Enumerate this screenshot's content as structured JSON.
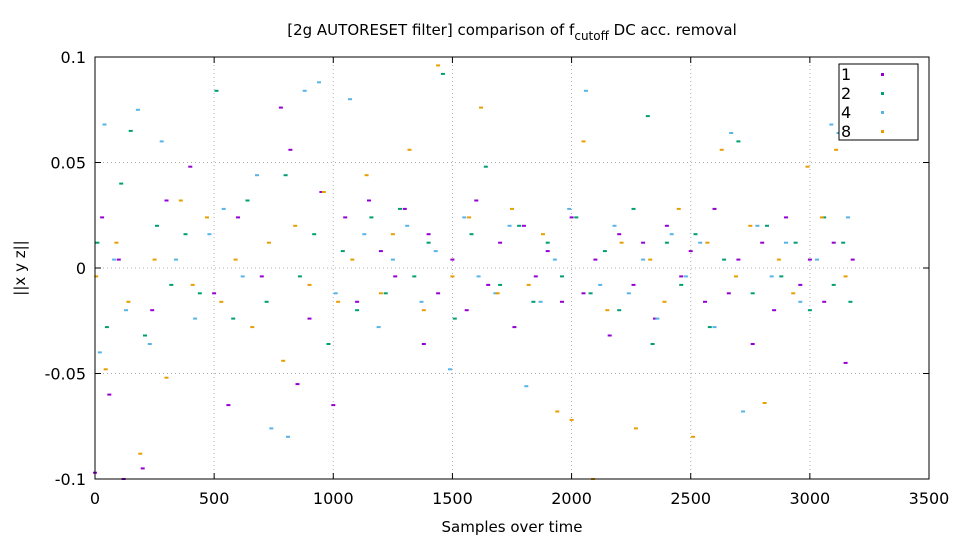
{
  "chart_data": {
    "type": "scatter",
    "title": {
      "prefix": "[2g AUTORESET filter] comparison of f",
      "subscript": "cutoff",
      "suffix": " DC acc. removal"
    },
    "xlabel": "Samples over time",
    "ylabel": "||x y z||",
    "xlim": [
      0,
      3500
    ],
    "ylim": [
      -0.1,
      0.1
    ],
    "x_ticks": [
      {
        "value": 0,
        "label": "0"
      },
      {
        "value": 500,
        "label": "500"
      },
      {
        "value": 1000,
        "label": "1000"
      },
      {
        "value": 1500,
        "label": "1500"
      },
      {
        "value": 2000,
        "label": "2000"
      },
      {
        "value": 2500,
        "label": "2500"
      },
      {
        "value": 3000,
        "label": "3000"
      },
      {
        "value": 3500,
        "label": "3500"
      }
    ],
    "y_ticks": [
      {
        "value": -0.1,
        "label": "-0.1"
      },
      {
        "value": -0.05,
        "label": "-0.05"
      },
      {
        "value": 0,
        "label": "0"
      },
      {
        "value": 0.05,
        "label": "0.05"
      },
      {
        "value": 0.1,
        "label": "0.1"
      }
    ],
    "grid": true,
    "legend_position": "top-right",
    "series": [
      {
        "name": "1",
        "color": "#9400d3",
        "marker": "dot",
        "x": [
          0,
          30,
          60,
          100,
          120,
          200,
          240,
          300,
          400,
          500,
          560,
          600,
          700,
          780,
          820,
          850,
          900,
          950,
          1000,
          1050,
          1100,
          1150,
          1200,
          1260,
          1300,
          1380,
          1400,
          1440,
          1500,
          1560,
          1600,
          1650,
          1700,
          1760,
          1800,
          1850,
          1900,
          1960,
          2000,
          2050,
          2100,
          2160,
          2200,
          2260,
          2300,
          2350,
          2400,
          2460,
          2500,
          2560,
          2600,
          2660,
          2700,
          2760,
          2800,
          2850,
          2900,
          2960,
          3000,
          3060,
          3100,
          3150,
          3180
        ],
        "y": [
          -0.097,
          0.024,
          -0.06,
          0.004,
          -0.1,
          -0.095,
          -0.02,
          0.032,
          0.048,
          -0.012,
          -0.065,
          0.024,
          -0.004,
          0.076,
          0.056,
          -0.055,
          -0.024,
          0.036,
          -0.065,
          0.024,
          -0.016,
          0.032,
          0.008,
          -0.004,
          0.028,
          -0.036,
          0.016,
          -0.012,
          0.004,
          -0.02,
          0.032,
          -0.008,
          0.012,
          -0.028,
          0.02,
          -0.004,
          0.008,
          -0.016,
          0.024,
          -0.012,
          0.004,
          -0.032,
          0.016,
          -0.008,
          0.012,
          -0.024,
          0.02,
          -0.004,
          0.008,
          -0.016,
          0.028,
          -0.012,
          0.004,
          -0.036,
          0.012,
          -0.02,
          0.024,
          -0.008,
          0.004,
          -0.016,
          0.012,
          -0.045,
          0.004
        ]
      },
      {
        "name": "2",
        "color": "#009e73",
        "marker": "dot",
        "x": [
          10,
          50,
          110,
          150,
          210,
          260,
          320,
          380,
          440,
          510,
          580,
          640,
          720,
          800,
          860,
          920,
          980,
          1040,
          1100,
          1160,
          1220,
          1280,
          1340,
          1400,
          1460,
          1510,
          1580,
          1640,
          1700,
          1780,
          1840,
          1900,
          1960,
          2020,
          2080,
          2140,
          2200,
          2260,
          2320,
          2340,
          2400,
          2460,
          2520,
          2580,
          2640,
          2700,
          2760,
          2820,
          2880,
          2940,
          3000,
          3060,
          3100,
          3140,
          3170
        ],
        "y": [
          0.012,
          -0.028,
          0.04,
          0.065,
          -0.032,
          0.02,
          -0.008,
          0.016,
          -0.012,
          0.084,
          -0.024,
          0.032,
          -0.016,
          0.044,
          -0.004,
          0.016,
          -0.036,
          0.008,
          -0.02,
          0.024,
          -0.012,
          0.028,
          -0.004,
          0.012,
          0.092,
          -0.024,
          0.016,
          0.048,
          -0.008,
          0.02,
          -0.016,
          0.012,
          -0.004,
          0.024,
          -0.012,
          0.008,
          -0.02,
          0.028,
          0.072,
          -0.036,
          0.012,
          -0.008,
          0.016,
          -0.028,
          0.004,
          0.06,
          -0.012,
          0.02,
          -0.004,
          0.012,
          -0.02,
          0.024,
          -0.008,
          0.012,
          -0.016
        ]
      },
      {
        "name": "4",
        "color": "#56b4e9",
        "marker": "dot",
        "x": [
          20,
          40,
          80,
          130,
          180,
          230,
          280,
          340,
          420,
          480,
          540,
          620,
          680,
          740,
          810,
          880,
          940,
          1010,
          1070,
          1130,
          1190,
          1250,
          1310,
          1370,
          1430,
          1490,
          1550,
          1610,
          1680,
          1740,
          1810,
          1870,
          1930,
          1990,
          2060,
          2120,
          2180,
          2240,
          2300,
          2360,
          2420,
          2480,
          2540,
          2600,
          2670,
          2720,
          2780,
          2840,
          2900,
          2960,
          3030,
          3090,
          3120,
          3160
        ],
        "y": [
          -0.04,
          0.068,
          0.004,
          -0.02,
          0.075,
          -0.036,
          0.06,
          0.004,
          -0.024,
          0.016,
          0.028,
          -0.004,
          0.044,
          -0.076,
          -0.08,
          0.084,
          0.088,
          -0.012,
          0.08,
          0.016,
          -0.028,
          0.004,
          0.02,
          -0.016,
          0.008,
          -0.048,
          0.024,
          -0.004,
          -0.012,
          0.02,
          -0.056,
          -0.016,
          0.004,
          0.028,
          0.084,
          -0.008,
          0.02,
          -0.012,
          0.004,
          -0.024,
          0.016,
          -0.004,
          0.012,
          -0.028,
          0.064,
          -0.068,
          0.02,
          -0.004,
          0.012,
          -0.016,
          0.004,
          0.068,
          0.064,
          0.024
        ]
      },
      {
        "name": "8",
        "color": "#e69f00",
        "marker": "dot",
        "x": [
          5,
          45,
          90,
          140,
          190,
          250,
          300,
          360,
          410,
          470,
          530,
          590,
          660,
          730,
          790,
          840,
          900,
          960,
          1020,
          1080,
          1140,
          1200,
          1250,
          1320,
          1380,
          1440,
          1500,
          1570,
          1620,
          1690,
          1750,
          1820,
          1880,
          1940,
          2000,
          2050,
          2090,
          2150,
          2210,
          2270,
          2330,
          2390,
          2450,
          2510,
          2570,
          2630,
          2690,
          2750,
          2810,
          2870,
          2930,
          2990,
          3050,
          3110,
          3150
        ],
        "y": [
          -0.004,
          -0.048,
          0.012,
          -0.016,
          -0.088,
          0.004,
          -0.052,
          0.032,
          -0.008,
          0.024,
          -0.016,
          0.004,
          -0.028,
          0.012,
          -0.044,
          0.02,
          -0.008,
          0.036,
          -0.016,
          0.004,
          0.044,
          -0.012,
          0.016,
          0.056,
          -0.02,
          0.096,
          -0.004,
          0.024,
          0.076,
          -0.012,
          0.028,
          -0.008,
          0.016,
          -0.068,
          -0.072,
          0.06,
          -0.1,
          -0.02,
          0.012,
          -0.076,
          0.004,
          -0.016,
          0.028,
          -0.08,
          0.012,
          0.056,
          -0.004,
          0.02,
          -0.064,
          0.004,
          -0.012,
          0.048,
          0.024,
          0.056,
          -0.004
        ]
      }
    ]
  }
}
